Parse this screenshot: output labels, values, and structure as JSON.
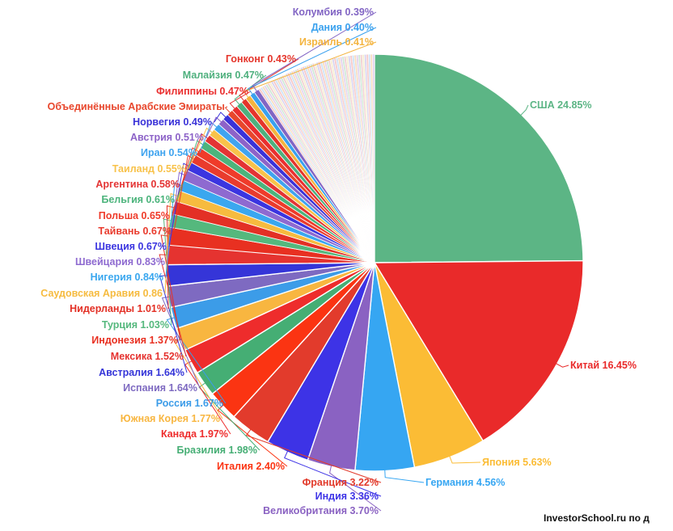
{
  "chart_data": {
    "type": "pie",
    "title": "",
    "categories": [
      "США",
      "Китай",
      "Япония",
      "Германия",
      "Великобритания",
      "Индия",
      "Франция",
      "Италия",
      "Бразилия",
      "Канада",
      "Южная Корея",
      "Россия",
      "Испания",
      "Австралия",
      "Мексика",
      "Индонезия",
      "Турция",
      "Нидерланды",
      "Саудовская Аравия",
      "Нигерия",
      "Швейцария",
      "Швеция",
      "Тайвань",
      "Польша",
      "Бельгия",
      "Аргентина",
      "Таиланд",
      "Иран",
      "Австрия",
      "Норвегия",
      "Объединённые Арабские Эмираты",
      "Филиппины",
      "Малайзия",
      "Гонконг",
      "Израиль",
      "Дания",
      "Колумбия"
    ],
    "values": [
      24.85,
      16.45,
      5.63,
      4.56,
      3.7,
      3.36,
      3.22,
      2.4,
      1.98,
      1.97,
      1.77,
      1.67,
      1.64,
      1.64,
      1.52,
      1.37,
      1.03,
      1.01,
      0.86,
      0.84,
      0.83,
      0.67,
      0.67,
      0.65,
      0.61,
      0.58,
      0.55,
      0.54,
      0.51,
      0.49,
      0.48,
      0.47,
      0.47,
      0.43,
      0.41,
      0.4,
      0.39
    ],
    "labels": [
      "США 24.85%",
      "Китай 16.45%",
      "Япония 5.63%",
      "Германия 4.56%",
      "Великобритания 3.70%",
      "Индия 3.36%",
      "Франция 3.22%",
      "Италия 2.40%",
      "Бразилия 1.98%",
      "Канада 1.97%",
      "Южная Корея 1.77%",
      "Россия 1.67%",
      "Испания 1.64%",
      "Австралия 1.64%",
      "Мексика 1.52%",
      "Индонезия 1.37%",
      "Турция 1.03%",
      "Нидерланды 1.01%",
      "Саудовская Аравия 0.86",
      "Нигерия 0.84%",
      "Швейцария 0.83%",
      "Швеция 0.67%",
      "Тайвань 0.67%",
      "Польша 0.65%",
      "Бельгия 0.61%",
      "Аргентина 0.58%",
      "Таиланд 0.55%",
      "Иран 0.54%",
      "Австрия 0.51%",
      "Норвегия 0.49%",
      "Объединённые Арабские Эмираты",
      "Филиппины 0.47%",
      "Малайзия 0.47%",
      "Гонконг 0.43%",
      "Израиль 0.41%",
      "Дания 0.40%",
      "Колумбия 0.39%"
    ],
    "colors": [
      "#5cb585",
      "#e92a2a",
      "#fbbc35",
      "#36a6f2",
      "#8a62c2",
      "#3d33e6",
      "#e23b2c",
      "#fb3412",
      "#45ae74",
      "#ee2c2c",
      "#f8b640",
      "#3c9ce8",
      "#7e6ac1",
      "#3535d8",
      "#e53330",
      "#e83021",
      "#55b87d",
      "#e33025",
      "#f6bb3f",
      "#3aa7ef",
      "#8e6ad0",
      "#3b35e0",
      "#e93b2d",
      "#ef3b2a",
      "#4cb47c",
      "#e43434",
      "#f8c24a",
      "#40a4ef",
      "#8d63c8",
      "#3a32d8",
      "#e8462c",
      "#ea2f2f",
      "#4fb07e",
      "#e5352b",
      "#f4b43e",
      "#3aa1ee",
      "#8265c4"
    ],
    "other_colors": [
      "#f6c9c9",
      "#cfe3f5",
      "#f7dcbf",
      "#e3d2ee",
      "#cfe8d7",
      "#f2d0d0",
      "#f6eed2",
      "#d9d3ef"
    ],
    "legend": "none"
  },
  "credit": "InvestorSchool.ru по д"
}
